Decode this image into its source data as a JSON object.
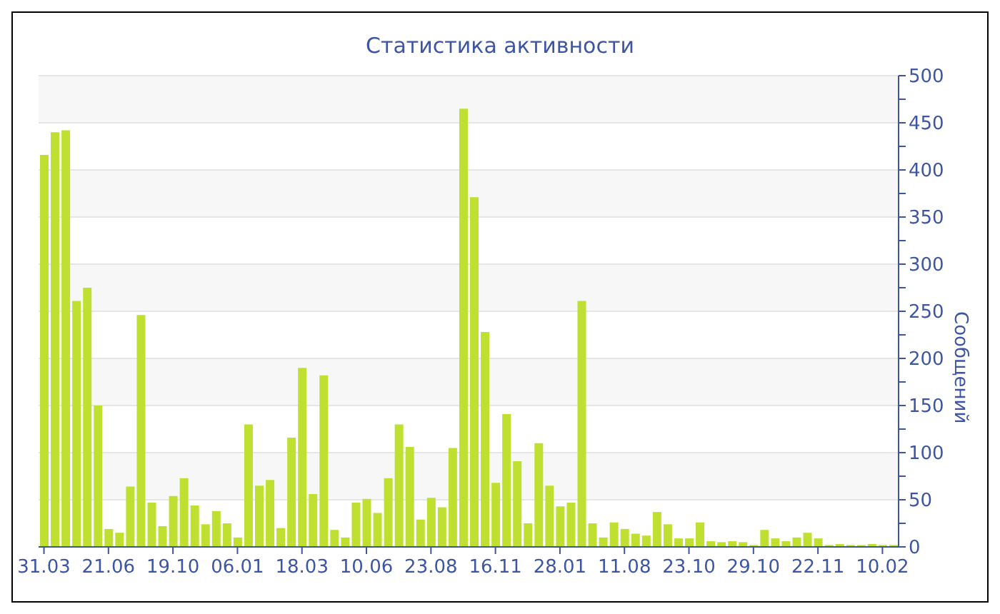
{
  "chart_data": {
    "type": "bar",
    "title": "Статистика активности",
    "ylabel": "Сообщений",
    "categories": [
      "31.03",
      null,
      null,
      null,
      null,
      null,
      "21.06",
      null,
      null,
      null,
      null,
      null,
      "19.10",
      null,
      null,
      null,
      null,
      null,
      "06.01",
      null,
      null,
      null,
      null,
      null,
      "18.03",
      null,
      null,
      null,
      null,
      null,
      "10.06",
      null,
      null,
      null,
      null,
      null,
      "23.08",
      null,
      null,
      null,
      null,
      null,
      "16.11",
      null,
      null,
      null,
      null,
      null,
      "28.01",
      null,
      null,
      null,
      null,
      null,
      "11.08",
      null,
      null,
      null,
      null,
      null,
      "23.10",
      null,
      null,
      null,
      null,
      null,
      "29.10",
      null,
      null,
      null,
      null,
      null,
      "22.11",
      null,
      null,
      null,
      null,
      null,
      "10.02",
      null
    ],
    "values": [
      416,
      440,
      442,
      261,
      275,
      150,
      19,
      15,
      64,
      246,
      47,
      22,
      54,
      73,
      44,
      24,
      38,
      25,
      10,
      130,
      65,
      71,
      20,
      116,
      190,
      56,
      182,
      18,
      10,
      47,
      51,
      36,
      73,
      130,
      106,
      29,
      52,
      42,
      105,
      465,
      371,
      228,
      68,
      141,
      91,
      25,
      110,
      65,
      43,
      47,
      261,
      25,
      10,
      26,
      19,
      14,
      12,
      37,
      24,
      9,
      9,
      26,
      6,
      5,
      6,
      5,
      2,
      18,
      9,
      6,
      10,
      15,
      9,
      2,
      3,
      2,
      2,
      3,
      2,
      2
    ],
    "color": "#bfe030",
    "ylim": [
      0,
      500
    ],
    "yticks": [
      0,
      {
        "value": 25,
        "label": null
      },
      50,
      {
        "value": 75,
        "label": null
      },
      100,
      {
        "value": 125,
        "label": null
      },
      150,
      {
        "value": 175,
        "label": null
      },
      200,
      {
        "value": 225,
        "label": null
      },
      250,
      {
        "value": 275,
        "label": null
      },
      300,
      {
        "value": 325,
        "label": null
      },
      350,
      {
        "value": 375,
        "label": null
      },
      400,
      {
        "value": 425,
        "label": null
      },
      450,
      {
        "value": 475,
        "label": null
      },
      500
    ],
    "grid": "y"
  }
}
